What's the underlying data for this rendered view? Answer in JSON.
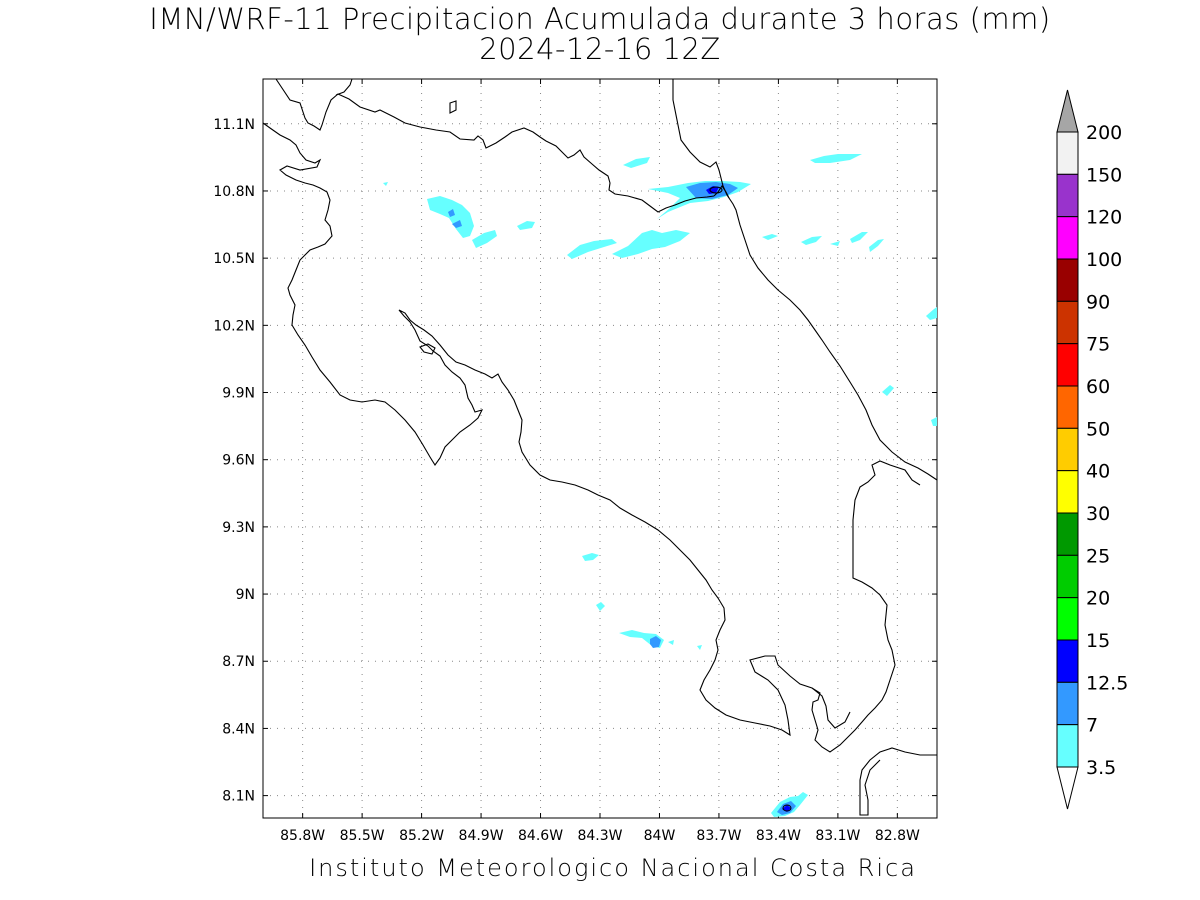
{
  "title": {
    "line1": "IMN/WRF-11 Precipitacion Acumulada durante 3 horas (mm)",
    "line2": "2024-12-16 12Z"
  },
  "footer": "Instituto Meteorologico Nacional Costa Rica",
  "map": {
    "lon_range": [
      -86.0,
      -82.6
    ],
    "lat_range": [
      8.0,
      11.3
    ],
    "lat_ticks": [
      "11.1N",
      "10.8N",
      "10.5N",
      "10.2N",
      "9.9N",
      "9.6N",
      "9.3N",
      "9N",
      "8.7N",
      "8.4N",
      "8.1N"
    ],
    "lon_ticks": [
      "85.8W",
      "85.5W",
      "85.2W",
      "84.9W",
      "84.6W",
      "84.3W",
      "84W",
      "83.7W",
      "83.4W",
      "83.1W",
      "82.8W"
    ],
    "grid": "dotted"
  },
  "colorbar": {
    "labels": [
      "200",
      "150",
      "120",
      "100",
      "90",
      "75",
      "60",
      "50",
      "40",
      "30",
      "25",
      "20",
      "15",
      "12.5",
      "7",
      "3.5"
    ],
    "colors": [
      "#a6a6a6",
      "#f2f2f2",
      "#9933cc",
      "#ff00ff",
      "#990000",
      "#cc3300",
      "#ff0000",
      "#ff6600",
      "#ffcc00",
      "#ffff00",
      "#009900",
      "#00cc00",
      "#00ff00",
      "#0000ff",
      "#3399ff",
      "#66ffff",
      "#ffffff"
    ]
  },
  "precip_colors": {
    "c35": "#66ffff",
    "c7": "#3399ff",
    "c125": "#0000ff"
  }
}
